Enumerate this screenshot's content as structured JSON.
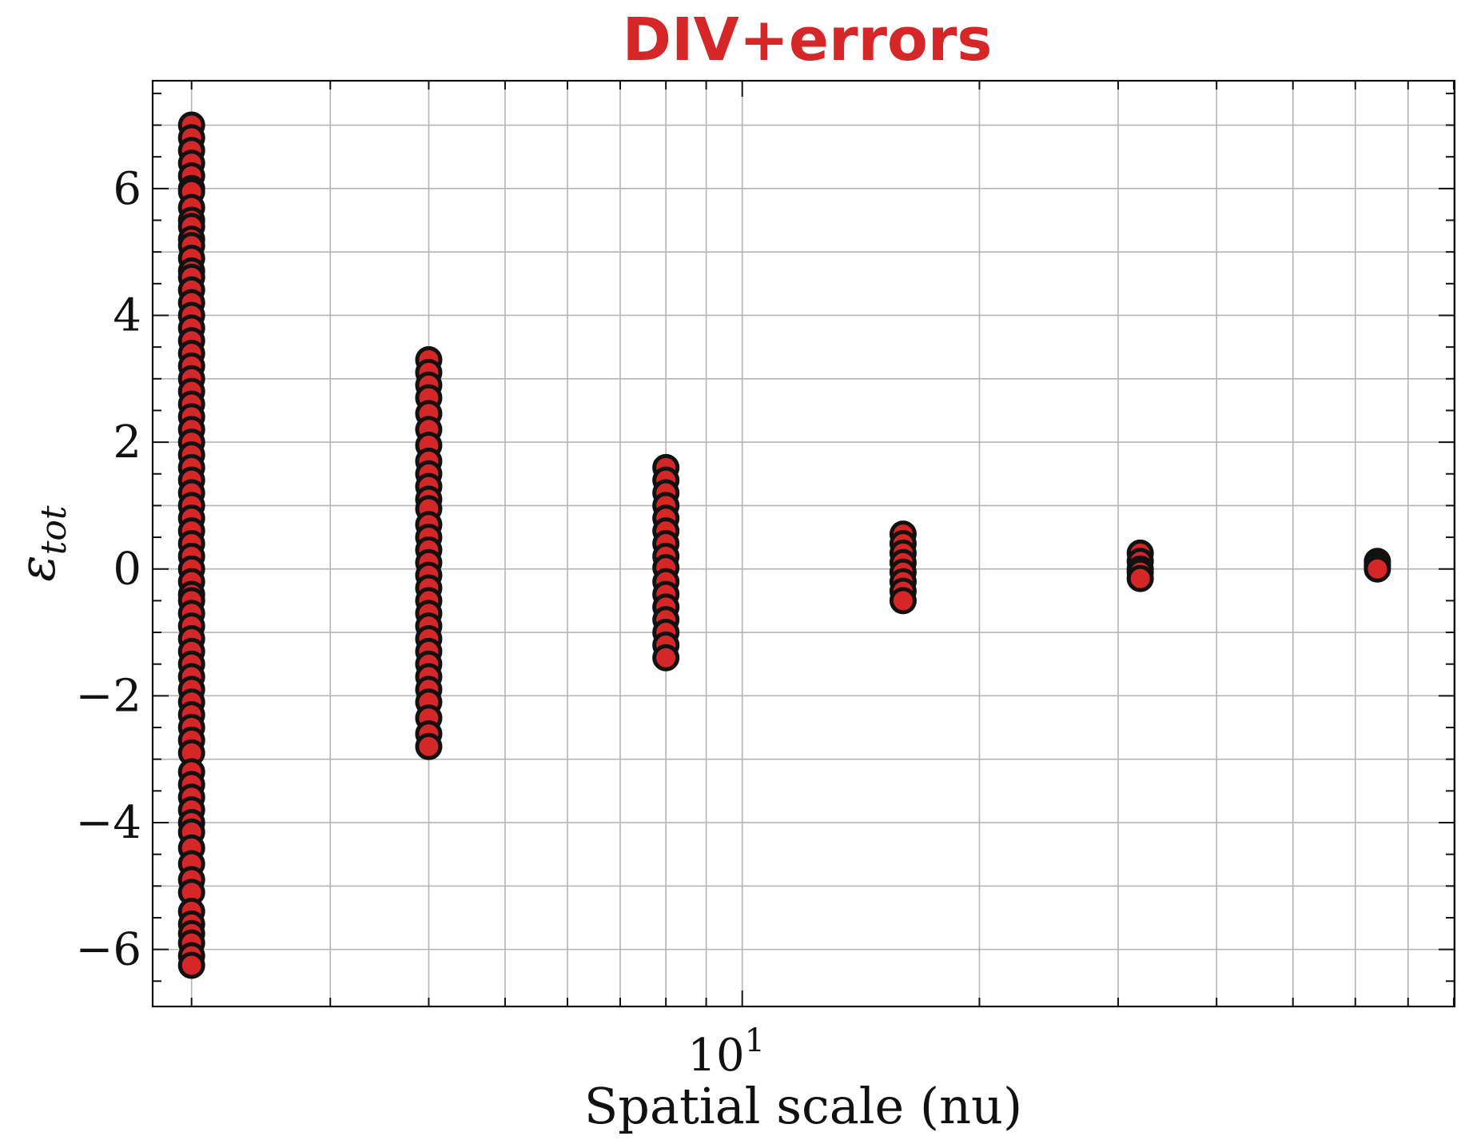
{
  "colors": {
    "title": "#d62728",
    "marker_fill": "#d62728",
    "marker_edge": "#111111",
    "grid": "#b5b5b5",
    "axes": "#111111"
  },
  "chart_data": {
    "type": "scatter",
    "title": "DIV+errors",
    "xlabel": "Spatial scale (nu)",
    "ylabel_base": "ε",
    "ylabel_sub": "tot",
    "x_scale": "log",
    "xlim": [
      1.785,
      80.2
    ],
    "ylim": [
      -6.9,
      7.7
    ],
    "x_ticks": [
      {
        "value": 10,
        "base": "10",
        "exp": "1"
      }
    ],
    "y_ticks": [
      {
        "value": -6,
        "label": "−6"
      },
      {
        "value": -4,
        "label": "−4"
      },
      {
        "value": -2,
        "label": "−2"
      },
      {
        "value": 0,
        "label": "0"
      },
      {
        "value": 2,
        "label": "2"
      },
      {
        "value": 4,
        "label": "4"
      },
      {
        "value": 6,
        "label": "6"
      }
    ],
    "grid": true,
    "series": [
      {
        "x": 2,
        "values": [
          7.0,
          6.8,
          6.6,
          6.4,
          6.2,
          6.0,
          5.95,
          5.7,
          5.5,
          5.4,
          5.2,
          5.1,
          4.9,
          4.7,
          4.6,
          4.4,
          4.2,
          4.0,
          3.8,
          3.6,
          3.4,
          3.2,
          3.0,
          2.8,
          2.6,
          2.4,
          2.2,
          2.0,
          1.8,
          1.6,
          1.4,
          1.2,
          1.0,
          0.8,
          0.6,
          0.4,
          0.2,
          0.0,
          -0.2,
          -0.4,
          -0.5,
          -0.7,
          -0.9,
          -1.1,
          -1.3,
          -1.5,
          -1.7,
          -1.9,
          -2.1,
          -2.3,
          -2.5,
          -2.7,
          -2.9,
          -3.2,
          -3.4,
          -3.6,
          -3.8,
          -4.0,
          -4.15,
          -4.4,
          -4.65,
          -4.9,
          -5.1,
          -5.4,
          -5.6,
          -5.75,
          -5.9,
          -6.1,
          -6.25
        ]
      },
      {
        "x": 4,
        "values": [
          3.3,
          3.1,
          2.9,
          2.7,
          2.45,
          2.2,
          1.95,
          1.7,
          1.5,
          1.3,
          1.1,
          0.95,
          0.7,
          0.5,
          0.3,
          0.1,
          -0.1,
          -0.3,
          -0.5,
          -0.7,
          -0.9,
          -1.1,
          -1.3,
          -1.5,
          -1.7,
          -1.9,
          -2.1,
          -2.35,
          -2.6,
          -2.8
        ]
      },
      {
        "x": 8,
        "values": [
          1.6,
          1.4,
          1.2,
          1.0,
          0.8,
          0.6,
          0.4,
          0.2,
          0.02,
          -0.2,
          -0.4,
          -0.6,
          -0.8,
          -1.0,
          -1.2,
          -1.4
        ]
      },
      {
        "x": 16,
        "values": [
          0.55,
          0.4,
          0.25,
          0.1,
          -0.05,
          -0.2,
          -0.35,
          -0.5
        ]
      },
      {
        "x": 32,
        "values": [
          0.25,
          0.12,
          0.0,
          -0.05,
          -0.15
        ]
      },
      {
        "x": 64,
        "values": [
          0.12,
          0.06,
          0.0
        ]
      }
    ]
  }
}
